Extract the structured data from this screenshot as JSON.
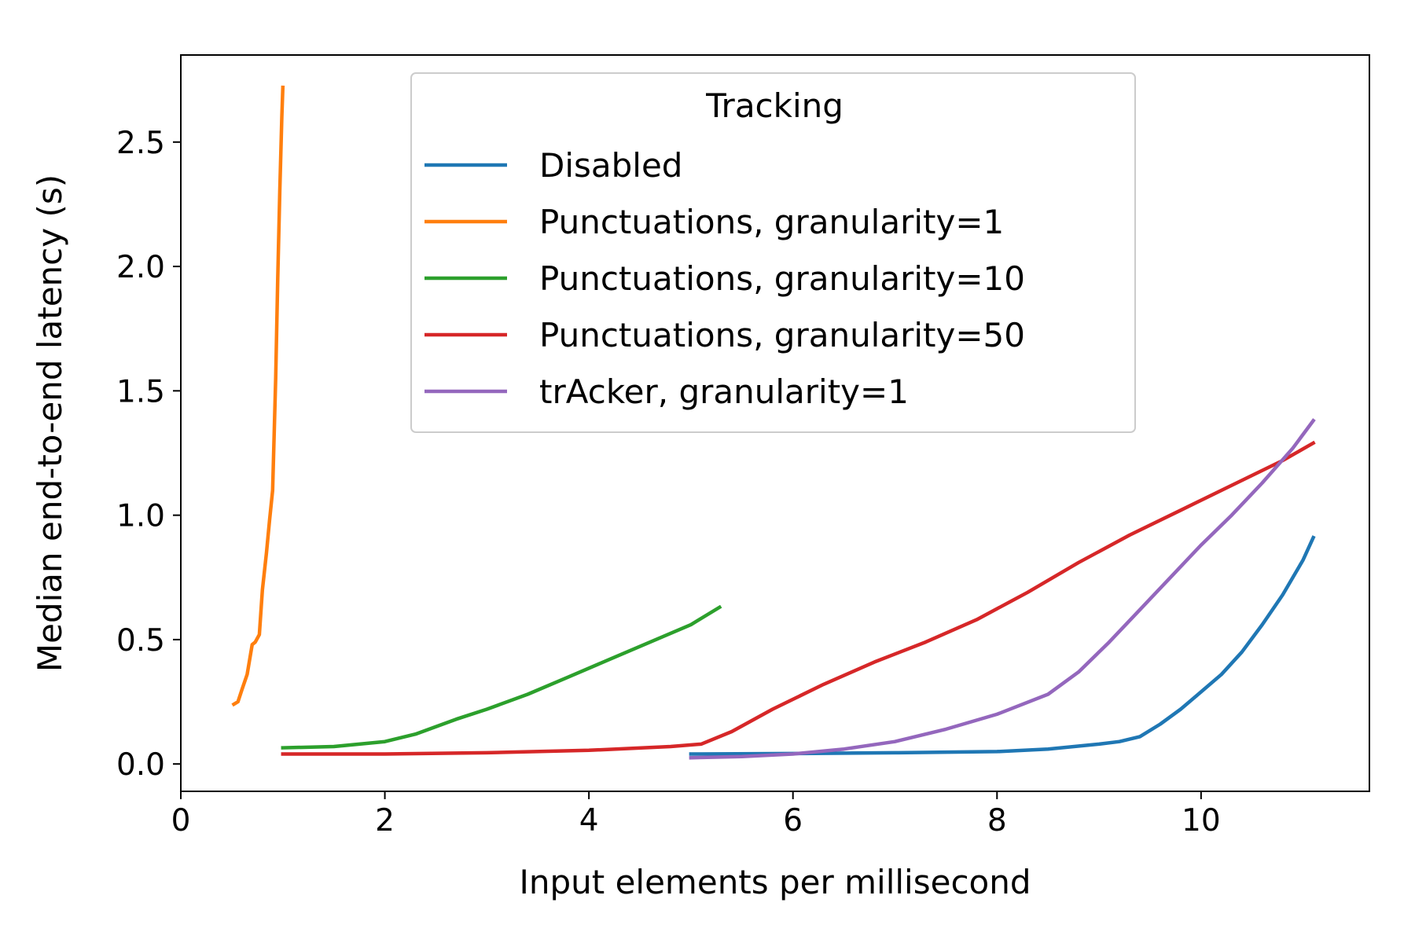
{
  "chart_data": {
    "type": "line",
    "title": "",
    "xlabel": "Input elements per millisecond",
    "ylabel": "Median end-to-end latency (s)",
    "xlim": [
      0,
      11.65
    ],
    "ylim": [
      -0.11,
      2.85
    ],
    "xticks": [
      0,
      2,
      4,
      6,
      8,
      10
    ],
    "yticks": [
      0.0,
      0.5,
      1.0,
      1.5,
      2.0,
      2.5
    ],
    "xtick_labels": [
      "0",
      "2",
      "4",
      "6",
      "8",
      "10"
    ],
    "ytick_labels": [
      "0.0",
      "0.5",
      "1.0",
      "1.5",
      "2.0",
      "2.5"
    ],
    "grid": false,
    "legend": {
      "title": "Tracking",
      "placement": "top-center"
    },
    "series": [
      {
        "name": "Disabled",
        "color": "#1f77b4",
        "x": [
          5.0,
          6.0,
          7.0,
          8.0,
          8.5,
          9.0,
          9.2,
          9.4,
          9.6,
          9.8,
          10.0,
          10.2,
          10.4,
          10.6,
          10.8,
          11.0,
          11.1
        ],
        "y": [
          0.04,
          0.042,
          0.045,
          0.05,
          0.06,
          0.08,
          0.09,
          0.11,
          0.16,
          0.22,
          0.29,
          0.36,
          0.45,
          0.56,
          0.68,
          0.82,
          0.91
        ]
      },
      {
        "name": "Punctuations, granularity=1",
        "color": "#ff7f0e",
        "x": [
          0.52,
          0.56,
          0.6,
          0.65,
          0.7,
          0.73,
          0.77,
          0.8,
          0.84,
          0.87,
          0.9,
          0.93,
          0.95,
          0.97,
          0.98,
          0.99,
          1.0
        ],
        "y": [
          0.24,
          0.25,
          0.3,
          0.36,
          0.48,
          0.49,
          0.52,
          0.7,
          0.85,
          0.98,
          1.1,
          1.55,
          1.95,
          2.3,
          2.45,
          2.6,
          2.72
        ]
      },
      {
        "name": "Punctuations, granularity=10",
        "color": "#2ca02c",
        "x": [
          1.0,
          1.5,
          2.0,
          2.3,
          2.7,
          3.0,
          3.4,
          3.8,
          4.2,
          4.6,
          5.0,
          5.28
        ],
        "y": [
          0.065,
          0.07,
          0.09,
          0.12,
          0.18,
          0.22,
          0.28,
          0.35,
          0.42,
          0.49,
          0.56,
          0.63
        ]
      },
      {
        "name": "Punctuations, granularity=50",
        "color": "#d62728",
        "x": [
          1.0,
          2.0,
          3.0,
          4.0,
          4.8,
          5.1,
          5.4,
          5.8,
          6.3,
          6.8,
          7.3,
          7.8,
          8.3,
          8.8,
          9.3,
          9.8,
          10.3,
          10.8,
          11.1
        ],
        "y": [
          0.04,
          0.04,
          0.045,
          0.055,
          0.07,
          0.08,
          0.13,
          0.22,
          0.32,
          0.41,
          0.49,
          0.58,
          0.69,
          0.81,
          0.92,
          1.02,
          1.12,
          1.22,
          1.29
        ]
      },
      {
        "name": "trAcker, granularity=1",
        "color": "#9467bd",
        "x": [
          5.0,
          5.5,
          6.0,
          6.5,
          7.0,
          7.5,
          8.0,
          8.5,
          8.8,
          9.1,
          9.4,
          9.7,
          10.0,
          10.3,
          10.6,
          10.9,
          11.1
        ],
        "y": [
          0.025,
          0.03,
          0.04,
          0.06,
          0.09,
          0.14,
          0.2,
          0.28,
          0.37,
          0.49,
          0.62,
          0.75,
          0.88,
          1.0,
          1.13,
          1.27,
          1.38
        ]
      }
    ]
  }
}
